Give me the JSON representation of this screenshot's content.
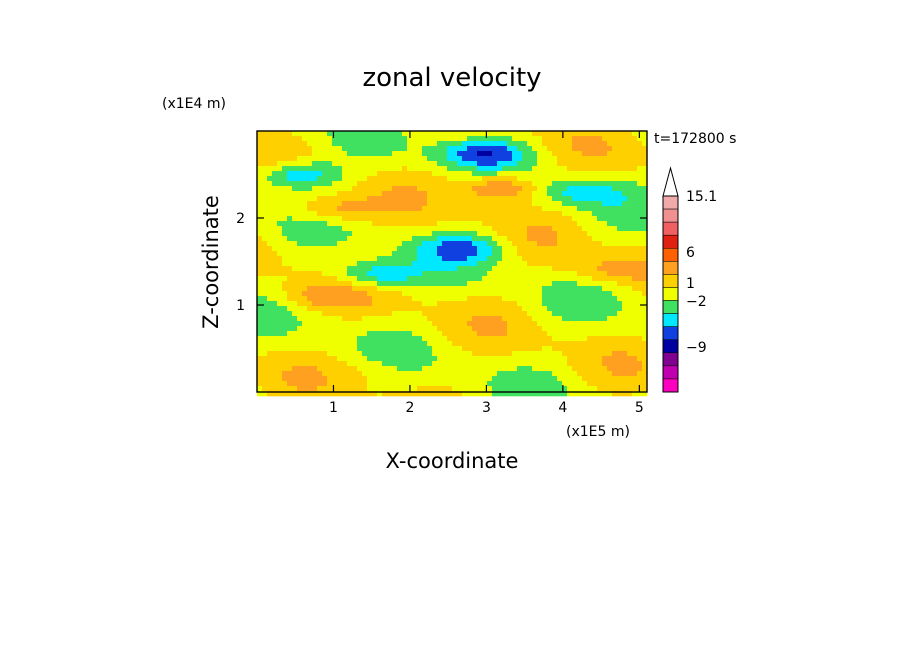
{
  "chart_data": {
    "type": "heatmap",
    "title": "zonal velocity",
    "xlabel": "X-coordinate",
    "ylabel": "Z-coordinate",
    "x_scale_label": "(x1E5 m)",
    "y_scale_label": "(x1E4 m)",
    "time_label": "t=172800 s",
    "xlim": [
      0,
      5.1
    ],
    "ylim": [
      0,
      3.0
    ],
    "x_ticks": [
      "1",
      "2",
      "3",
      "4",
      "5"
    ],
    "y_ticks": [
      "1",
      "2"
    ],
    "colorbar": {
      "labels": [
        "15.1",
        "6",
        "1",
        "−2",
        "−9"
      ],
      "max": 15.1,
      "min": -15,
      "colors": [
        "#f0aaaa",
        "#f09090",
        "#f06060",
        "#e02010",
        "#ff6000",
        "#ffa020",
        "#ffd000",
        "#f0ff00",
        "#40e060",
        "#00e8ff",
        "#1040e0",
        "#0000a0",
        "#800090",
        "#c000b0",
        "#ff00c0"
      ]
    },
    "features": [
      {
        "x": 0.55,
        "z": 2.5,
        "u": -6
      },
      {
        "x": 1.55,
        "z": 1.35,
        "u": -6
      },
      {
        "x": 2.95,
        "z": 2.75,
        "u": -6
      },
      {
        "x": 2.7,
        "z": 1.65,
        "u": -5
      },
      {
        "x": 4.2,
        "z": 2.3,
        "u": -4
      },
      {
        "x": 3.2,
        "z": 2.35,
        "u": 6
      },
      {
        "x": 1.0,
        "z": 2.1,
        "u": 4
      },
      {
        "x": 0.8,
        "z": 1.1,
        "u": 3
      },
      {
        "x": 4.6,
        "z": 1.4,
        "u": 3
      },
      {
        "x": 1.5,
        "z": 0.25,
        "u": 1
      }
    ]
  }
}
